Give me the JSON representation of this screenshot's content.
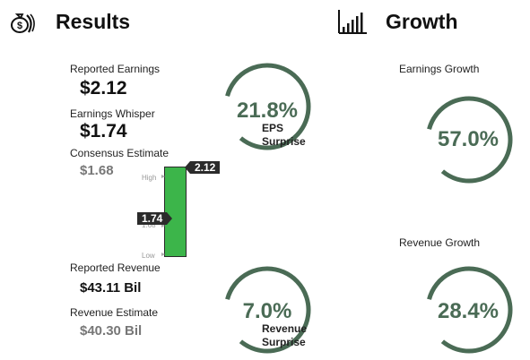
{
  "results": {
    "title": "Results",
    "icon": "money-bag-icon",
    "reported_earnings": {
      "label": "Reported Earnings",
      "value": "$2.12"
    },
    "earnings_whisper": {
      "label": "Earnings Whisper",
      "value": "$1.74"
    },
    "consensus_estimate": {
      "label": "Consensus Estimate",
      "value": "$1.68"
    },
    "reported_revenue": {
      "label": "Reported Revenue",
      "value": "$43.11 Bil"
    },
    "revenue_estimate": {
      "label": "Revenue Estimate",
      "value": "$40.30 Bil"
    },
    "eps_surprise": {
      "percent": "21.8%",
      "caption_1": "EPS",
      "caption_2": "Surprise",
      "fraction": 0.82
    },
    "revenue_surprise": {
      "percent": "7.0%",
      "caption_1": "Revenue",
      "caption_2": "Surprise",
      "fraction": 0.82
    }
  },
  "range_bar": {
    "high_label": "High",
    "mid_label": "1.68",
    "low_label": "Low",
    "reported_flag": "2.12",
    "whisper_flag": "1.74",
    "bar_color": "#3cb54a"
  },
  "growth": {
    "title": "Growth",
    "icon": "bar-chart-icon",
    "earnings_growth": {
      "label": "Earnings Growth",
      "percent": "57.0%",
      "fraction": 0.82
    },
    "revenue_growth": {
      "label": "Revenue Growth",
      "percent": "28.4%",
      "fraction": 0.82
    }
  },
  "colors": {
    "gauge": "#4a6b55",
    "flag": "#2b2b2b"
  }
}
